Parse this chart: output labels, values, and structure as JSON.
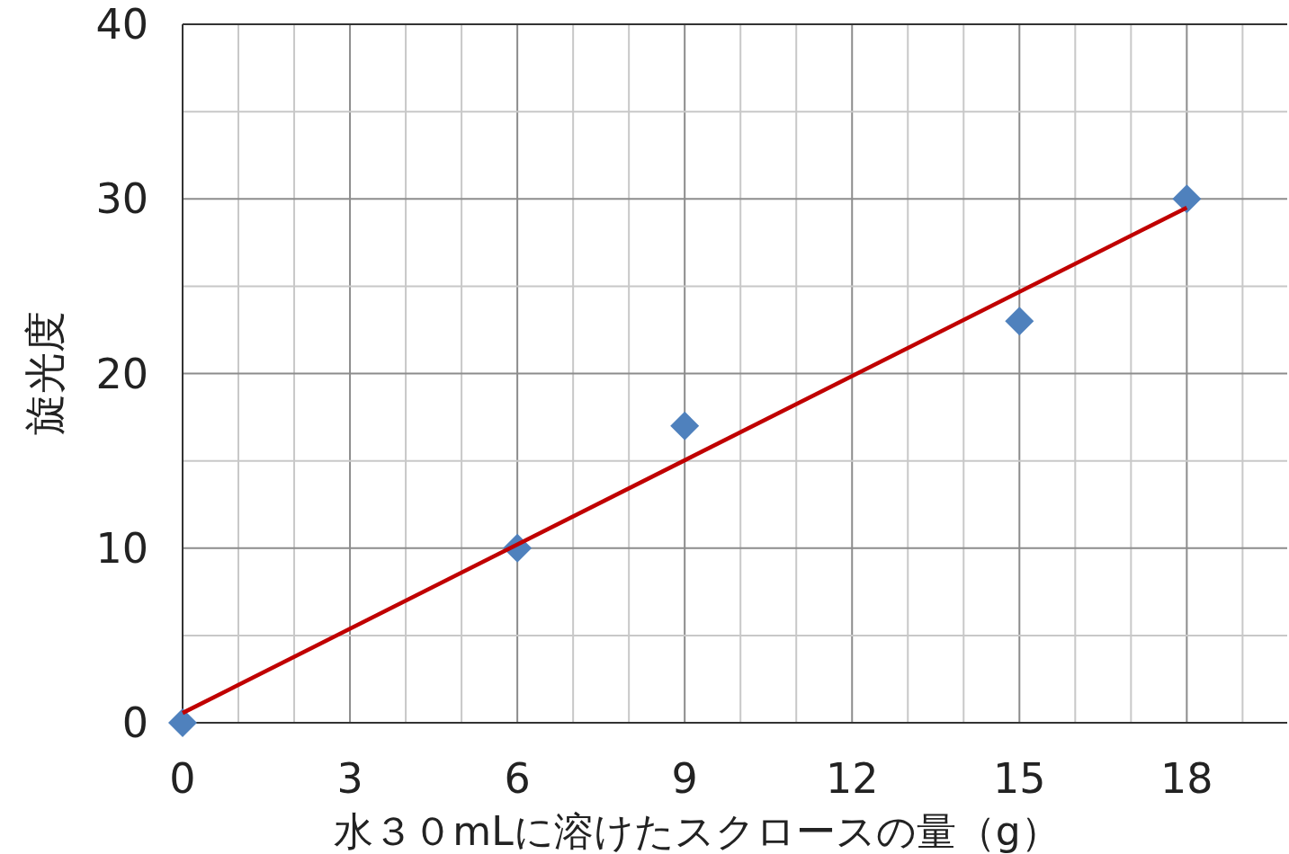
{
  "chart_data": {
    "type": "scatter",
    "xlabel": "水３０mLに溶けたスクロースの量（g）",
    "ylabel": "旋光度",
    "x": [
      0,
      6,
      9,
      15,
      18
    ],
    "series": [
      {
        "color": "#4f81bd",
        "marker": "diamond",
        "values": [
          0,
          10,
          17,
          23,
          30
        ]
      },
      {
        "type": "line",
        "marker": "none",
        "color": "#c00000",
        "x": [
          0,
          18
        ],
        "values": [
          0.56,
          29.5
        ]
      }
    ],
    "grid": true,
    "xlim": [
      0,
      19.8
    ],
    "ylim": [
      0,
      40
    ],
    "xticks": [
      0,
      {
        "value": 1,
        "label": null
      },
      {
        "value": 2,
        "label": null
      },
      3,
      {
        "value": 4,
        "label": null
      },
      {
        "value": 5,
        "label": null
      },
      6,
      {
        "value": 7,
        "label": null
      },
      {
        "value": 8,
        "label": null
      },
      9,
      {
        "value": 10,
        "label": null
      },
      {
        "value": 11,
        "label": null
      },
      12,
      {
        "value": 13,
        "label": null
      },
      {
        "value": 14,
        "label": null
      },
      15,
      {
        "value": 16,
        "label": null
      },
      {
        "value": 17,
        "label": null
      },
      18,
      {
        "value": 19,
        "label": null
      }
    ],
    "yticks": [
      0,
      {
        "value": 5,
        "label": null
      },
      10,
      {
        "value": 15,
        "label": null
      },
      20,
      {
        "value": 25,
        "label": null
      },
      30,
      {
        "value": 35,
        "label": null
      },
      40
    ]
  }
}
